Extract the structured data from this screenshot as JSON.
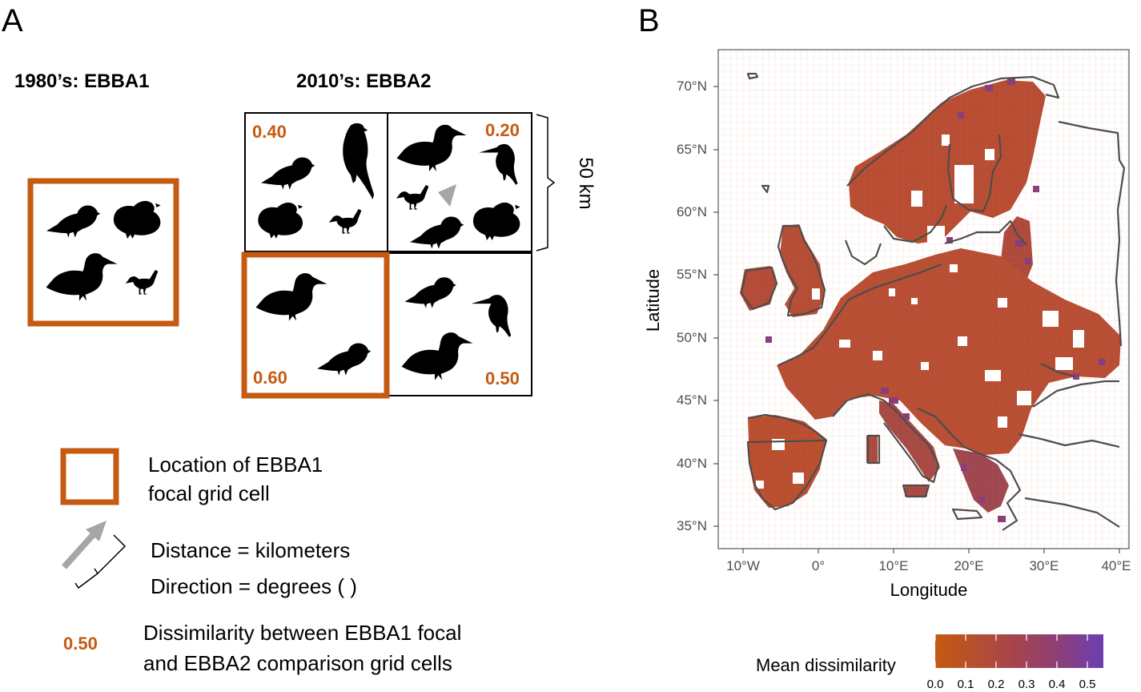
{
  "colors": {
    "orange": "#c55a11",
    "scale_low": "#c55a11",
    "scale_mid": "#a8454a",
    "scale_high": "#6a3fb3",
    "coastline": "#4d4d4d",
    "arrow_gray": "#a6a6a6"
  },
  "panel_a": {
    "letter": "A",
    "ebba1": {
      "title": "1980’s: EBBA1",
      "birds": [
        "sparrow-silhouette-icon",
        "quail-silhouette-icon",
        "duck-silhouette-icon",
        "wren-silhouette-icon"
      ]
    },
    "ebba2": {
      "title": "2010’s: EBBA2",
      "scale_label": "50 km",
      "cells": [
        {
          "position": "top-left",
          "value": "0.40",
          "birds": [
            "sparrow-silhouette-icon",
            "starling-silhouette-icon",
            "quail-silhouette-icon",
            "wren-silhouette-icon"
          ]
        },
        {
          "position": "top-right",
          "value": "0.20",
          "birds": [
            "duck-silhouette-icon",
            "kingfisher-silhouette-icon",
            "wren-silhouette-icon",
            "sparrow-silhouette-icon",
            "quail-silhouette-icon"
          ]
        },
        {
          "position": "bottom-left",
          "value": "0.60",
          "focal": true,
          "birds": [
            "duck-silhouette-icon",
            "sparrow-silhouette-icon"
          ]
        },
        {
          "position": "bottom-right",
          "value": "0.50",
          "birds": [
            "sparrow-silhouette-icon",
            "kingfisher-silhouette-icon",
            "duck-silhouette-icon"
          ]
        }
      ]
    },
    "legend": {
      "focal_line1": "Location of EBBA1",
      "focal_line2": "focal grid cell",
      "distance": "Distance = kilometers",
      "direction": "Direction = degrees (  )",
      "dissim_value": "0.50",
      "dissim_line1": "Dissimilarity between EBBA1 focal",
      "dissim_line2": "and EBBA2 comparison grid cells"
    }
  },
  "panel_b": {
    "letter": "B",
    "map": {
      "xlabel": "Longitude",
      "ylabel": "Latitude",
      "xlim": [
        -12,
        42
      ],
      "ylim": [
        33,
        73
      ],
      "x_ticks": [
        "10°W",
        "0°",
        "10°E",
        "20°E",
        "30°E",
        "40°E"
      ],
      "y_ticks": [
        "35°N",
        "40°N",
        "45°N",
        "50°N",
        "55°N",
        "60°N",
        "65°N",
        "70°N"
      ]
    },
    "colorbar": {
      "title": "Mean dissimilarity",
      "tick_labels": [
        "0.0",
        "0.1",
        "0.2",
        "0.3",
        "0.4",
        "0.5"
      ],
      "range": [
        0,
        0.55
      ]
    }
  }
}
